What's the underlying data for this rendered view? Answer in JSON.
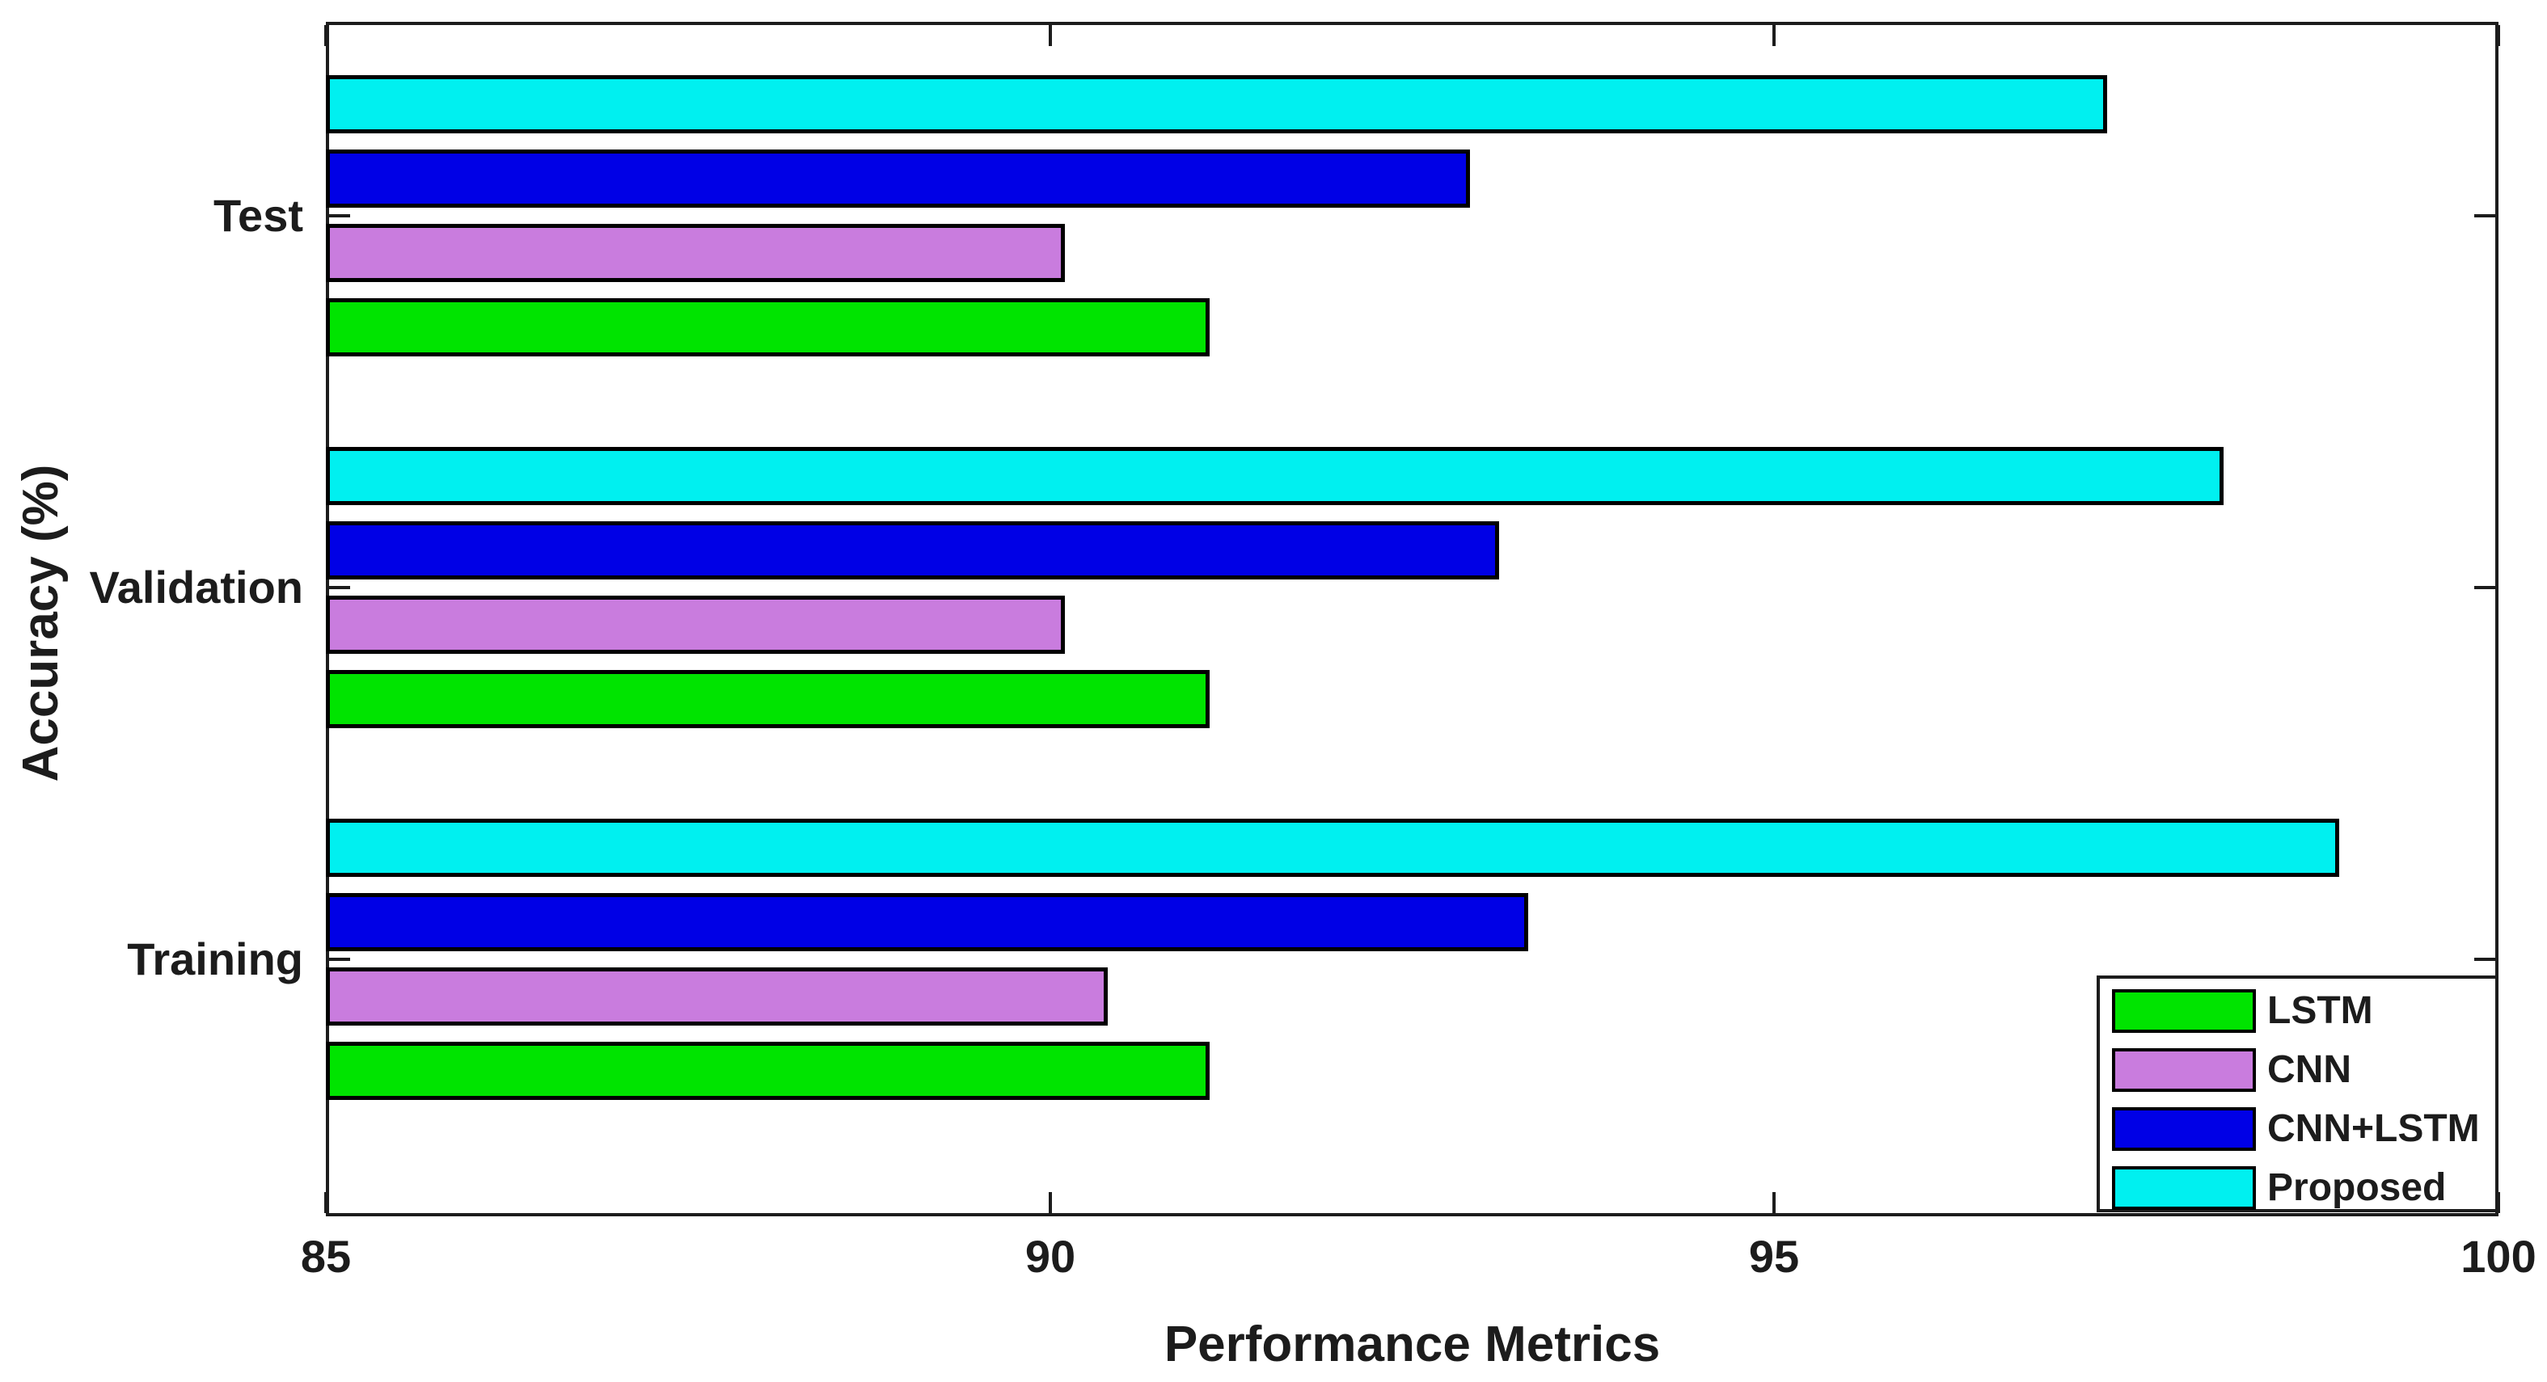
{
  "figure": {
    "xlabel": "Performance Metrics",
    "ylabel": "Accuracy (%)"
  },
  "chart_data": {
    "type": "bar",
    "orientation": "horizontal",
    "title": "",
    "xlabel": "Performance Metrics",
    "ylabel": "Accuracy (%)",
    "xlim": [
      85,
      100
    ],
    "xticks": [
      85,
      90,
      95,
      100
    ],
    "grid": false,
    "legend_position": "bottom-right",
    "categories": [
      "Training",
      "Validation",
      "Test"
    ],
    "series": [
      {
        "name": "LSTM",
        "color": "#00E400",
        "values": [
          91.1,
          91.1,
          91.1
        ]
      },
      {
        "name": "CNN",
        "color": "#C97CDE",
        "values": [
          90.4,
          90.1,
          90.1
        ]
      },
      {
        "name": "CNN+LSTM",
        "color": "#0000E6",
        "values": [
          93.3,
          93.1,
          92.9
        ]
      },
      {
        "name": "Proposed",
        "color": "#00F0F0",
        "values": [
          98.9,
          98.1,
          97.3
        ]
      }
    ],
    "colors": {
      "bar_edge": "#000000",
      "axis": "#1c1c1c",
      "background": "#ffffff"
    }
  }
}
